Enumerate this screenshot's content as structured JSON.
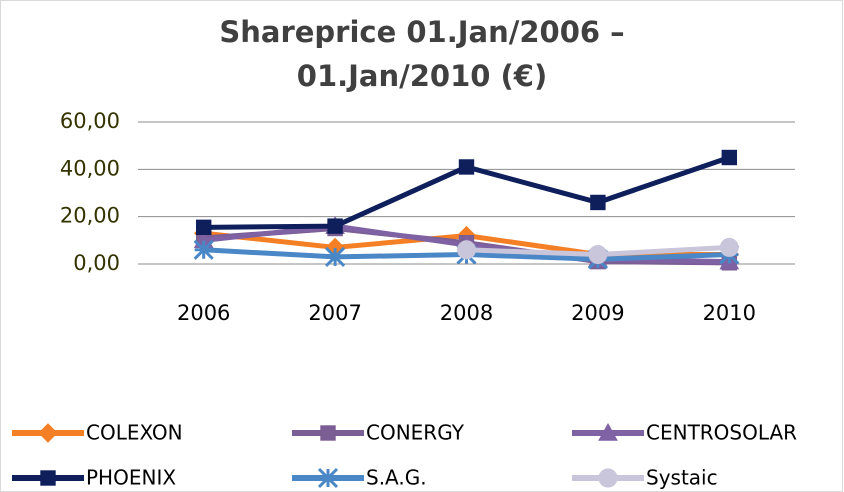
{
  "chart_data": {
    "type": "line",
    "title": "Shareprice 01.Jan/2006 – 01.Jan/2010 (€)",
    "categories": [
      "2006",
      "2007",
      "2008",
      "2009",
      "2010"
    ],
    "ylim": [
      0,
      60
    ],
    "yticks": [
      {
        "value": 0,
        "label": "0,00"
      },
      {
        "value": 20,
        "label": "20,00"
      },
      {
        "value": 40,
        "label": "40,00"
      },
      {
        "value": 60,
        "label": "60,00"
      }
    ],
    "grid": true,
    "legend": "bottom",
    "series": [
      {
        "name": "COLEXON",
        "color": "#f47f24",
        "marker": "diamond",
        "values": [
          13,
          7,
          12,
          4,
          4
        ]
      },
      {
        "name": "CONERGY",
        "color": "#7b5e93",
        "marker": "square",
        "values": [
          11,
          15,
          9,
          1,
          0.5
        ]
      },
      {
        "name": "CENTROSOLAR",
        "color": "#7f62a3",
        "marker": "triangle",
        "values": [
          10,
          16,
          8,
          2,
          1
        ]
      },
      {
        "name": "PHOENIX",
        "color": "#0f1f5c",
        "marker": "square",
        "values": [
          15.5,
          16,
          41,
          26,
          45
        ]
      },
      {
        "name": "S.A.G.",
        "color": "#4a87c6",
        "marker": "star",
        "values": [
          6,
          3,
          4,
          2,
          4
        ]
      },
      {
        "name": "Systaic",
        "color": "#c9c5db",
        "marker": "circle",
        "values": [
          null,
          null,
          6,
          4,
          7
        ]
      }
    ]
  }
}
